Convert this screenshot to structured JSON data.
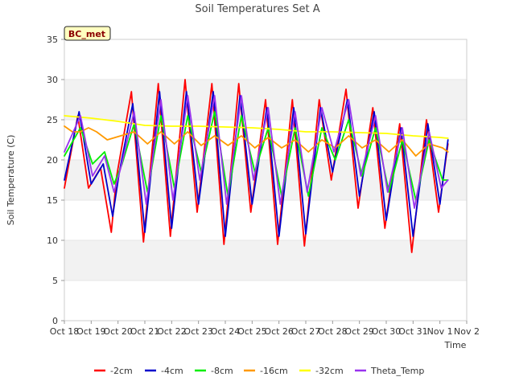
{
  "chart_data": {
    "type": "line",
    "title": "Soil Temperatures Set A",
    "xlabel": "Time",
    "ylabel": "Soil Temperature (C)",
    "badge": "BC_met",
    "xlim": [
      0,
      15
    ],
    "ylim": [
      0,
      35
    ],
    "x_ticks": [
      0,
      1,
      2,
      3,
      4,
      5,
      6,
      7,
      8,
      9,
      10,
      11,
      12,
      13,
      14,
      15
    ],
    "x_tick_labels": [
      "Oct 18",
      "Oct 19",
      "Oct 20",
      "Oct 21",
      "Oct 22",
      "Oct 23",
      "Oct 24",
      "Oct 25",
      "Oct 26",
      "Oct 27",
      "Oct 28",
      "Oct 29",
      "Oct 30",
      "Oct 31",
      "Nov 1",
      "Nov 2"
    ],
    "y_ticks": [
      0,
      5,
      10,
      15,
      20,
      25,
      30,
      35
    ],
    "y_tick_labels": [
      "0",
      "5",
      "10",
      "15",
      "20",
      "25",
      "30",
      "35"
    ],
    "grid": true,
    "legend_position": "bottom",
    "series": [
      {
        "name": "-2cm",
        "color": "#ff0000",
        "x": [
          0.0,
          0.5,
          0.9,
          1.35,
          1.75,
          1.95,
          2.5,
          2.95,
          3.5,
          3.95,
          4.5,
          4.95,
          5.5,
          5.95,
          6.5,
          6.95,
          7.5,
          7.95,
          8.5,
          8.95,
          9.5,
          9.95,
          10.5,
          10.95,
          11.5,
          11.95,
          12.5,
          12.95,
          13.5,
          13.95,
          14.3
        ],
        "y": [
          16.5,
          25.5,
          16.5,
          19.0,
          11.0,
          18.0,
          28.5,
          9.8,
          29.5,
          10.5,
          30.0,
          13.5,
          29.5,
          9.5,
          29.5,
          13.5,
          27.5,
          9.5,
          27.5,
          9.3,
          27.5,
          17.5,
          28.8,
          14.0,
          26.5,
          11.5,
          24.5,
          8.5,
          25.0,
          13.5,
          22.0
        ]
      },
      {
        "name": "-4cm",
        "color": "#0000cc",
        "x": [
          0.0,
          0.55,
          1.0,
          1.45,
          1.8,
          2.05,
          2.55,
          3.0,
          3.55,
          4.0,
          4.55,
          5.0,
          5.55,
          6.0,
          6.55,
          7.0,
          7.55,
          8.0,
          8.55,
          9.0,
          9.55,
          10.0,
          10.55,
          11.0,
          11.55,
          12.0,
          12.55,
          13.0,
          13.55,
          14.0,
          14.3
        ],
        "y": [
          17.5,
          26.0,
          17.0,
          19.5,
          13.0,
          18.5,
          27.0,
          11.0,
          28.5,
          11.5,
          28.5,
          14.5,
          28.5,
          10.5,
          28.0,
          14.5,
          26.5,
          10.5,
          26.5,
          10.8,
          26.5,
          18.5,
          27.5,
          15.5,
          26.0,
          12.5,
          24.0,
          10.5,
          24.5,
          14.5,
          22.5
        ]
      },
      {
        "name": "-8cm",
        "color": "#00ee00",
        "x": [
          0.0,
          0.6,
          1.05,
          1.5,
          1.85,
          2.15,
          2.6,
          3.1,
          3.6,
          4.1,
          4.6,
          5.1,
          5.6,
          6.1,
          6.6,
          7.1,
          7.6,
          8.1,
          8.6,
          9.1,
          9.6,
          10.1,
          10.6,
          11.1,
          11.6,
          12.1,
          12.6,
          13.1,
          13.6,
          14.1,
          14.3
        ],
        "y": [
          20.5,
          24.0,
          19.5,
          21.0,
          17.0,
          19.5,
          24.5,
          16.0,
          25.5,
          16.5,
          25.5,
          18.5,
          26.0,
          15.5,
          25.5,
          18.5,
          24.0,
          15.5,
          24.0,
          15.5,
          24.0,
          20.0,
          25.0,
          18.0,
          24.0,
          16.0,
          22.5,
          15.0,
          22.5,
          17.5,
          17.5
        ]
      },
      {
        "name": "-16cm",
        "color": "#ff9900",
        "x": [
          0.0,
          0.3,
          0.6,
          0.9,
          1.2,
          1.6,
          2.1,
          2.6,
          3.1,
          3.6,
          4.1,
          4.6,
          5.1,
          5.6,
          6.1,
          6.6,
          7.1,
          7.6,
          8.1,
          8.6,
          9.1,
          9.6,
          10.1,
          10.6,
          11.1,
          11.6,
          12.1,
          12.6,
          13.1,
          13.6,
          14.1,
          14.3
        ],
        "y": [
          24.2,
          23.5,
          23.5,
          24.0,
          23.5,
          22.5,
          23.0,
          23.5,
          22.0,
          23.5,
          22.0,
          23.5,
          21.8,
          23.0,
          21.8,
          23.0,
          21.5,
          22.8,
          21.5,
          22.5,
          21.0,
          22.5,
          21.5,
          23.0,
          21.5,
          22.5,
          21.0,
          22.5,
          20.5,
          22.0,
          21.5,
          21.0
        ]
      },
      {
        "name": "-32cm",
        "color": "#ffff00",
        "x": [
          0.0,
          1.0,
          2.0,
          3.0,
          4.0,
          5.0,
          6.0,
          7.0,
          8.0,
          9.0,
          10.0,
          11.0,
          12.0,
          13.0,
          14.0,
          14.3
        ],
        "y": [
          25.5,
          25.2,
          24.8,
          24.3,
          24.2,
          24.2,
          24.1,
          24.0,
          23.8,
          23.5,
          23.5,
          23.4,
          23.3,
          23.0,
          22.8,
          22.7
        ]
      },
      {
        "name": "Theta_Temp",
        "color": "#9933ee",
        "x": [
          0.0,
          0.6,
          1.05,
          1.5,
          1.85,
          2.1,
          2.6,
          3.05,
          3.6,
          4.05,
          4.6,
          5.05,
          5.6,
          6.05,
          6.6,
          7.05,
          7.6,
          8.05,
          8.6,
          9.05,
          9.6,
          10.05,
          10.6,
          11.05,
          11.6,
          12.05,
          12.6,
          13.05,
          13.6,
          14.05,
          14.3
        ],
        "y": [
          21.0,
          25.5,
          18.0,
          20.5,
          16.0,
          19.0,
          26.0,
          14.5,
          27.5,
          15.0,
          28.0,
          17.5,
          28.0,
          14.5,
          28.0,
          17.5,
          26.5,
          14.5,
          26.0,
          16.0,
          26.5,
          21.0,
          27.5,
          18.0,
          25.5,
          16.0,
          24.0,
          14.0,
          23.5,
          16.5,
          17.5
        ]
      }
    ]
  }
}
